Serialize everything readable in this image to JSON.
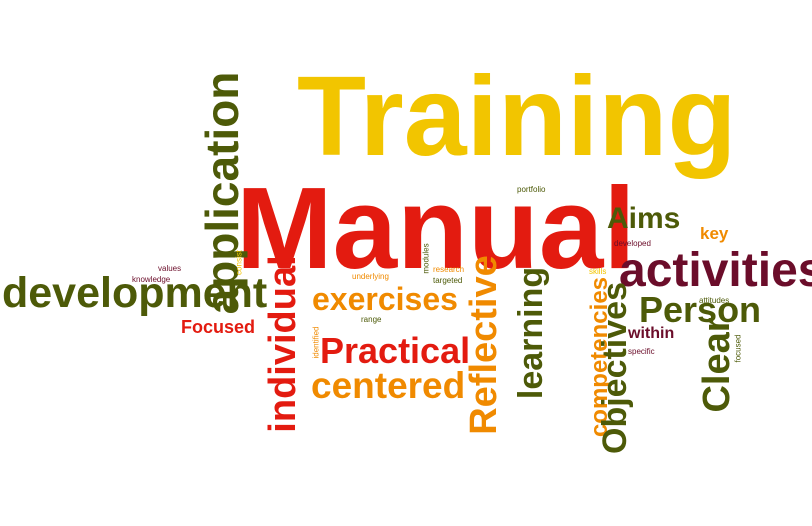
{
  "palette": {
    "yellow": "#f2c500",
    "red": "#e31b10",
    "orange": "#f08a00",
    "olive": "#4d5a08",
    "maroon": "#6b0d2a"
  },
  "words": [
    {
      "text": "Training",
      "color": "yellow"
    },
    {
      "text": "Manual",
      "color": "red"
    },
    {
      "text": "development",
      "color": "olive"
    },
    {
      "text": "activities",
      "color": "maroon"
    },
    {
      "text": "application",
      "color": "olive"
    },
    {
      "text": "individual",
      "color": "red"
    },
    {
      "text": "Practical",
      "color": "red"
    },
    {
      "text": "centered",
      "color": "orange"
    },
    {
      "text": "exercises",
      "color": "orange"
    },
    {
      "text": "Reflective",
      "color": "orange"
    },
    {
      "text": "learning",
      "color": "olive"
    },
    {
      "text": "competencies",
      "color": "orange"
    },
    {
      "text": "Objectives",
      "color": "olive"
    },
    {
      "text": "Person",
      "color": "olive"
    },
    {
      "text": "Clear",
      "color": "olive"
    },
    {
      "text": "Aims",
      "color": "olive"
    },
    {
      "text": "key",
      "color": "orange"
    },
    {
      "text": "within",
      "color": "maroon"
    },
    {
      "text": "Focused",
      "color": "red"
    },
    {
      "text": "portfolio",
      "color": "olive"
    },
    {
      "text": "developed",
      "color": "maroon"
    },
    {
      "text": "underlying",
      "color": "orange"
    },
    {
      "text": "research",
      "color": "orange"
    },
    {
      "text": "targeted",
      "color": "olive"
    },
    {
      "text": "values",
      "color": "maroon"
    },
    {
      "text": "knowledge",
      "color": "maroon"
    },
    {
      "text": "range",
      "color": "olive"
    },
    {
      "text": "attitudes",
      "color": "olive"
    },
    {
      "text": "specific",
      "color": "maroon"
    },
    {
      "text": "consist",
      "color": "yellow"
    },
    {
      "text": "identified",
      "color": "orange"
    },
    {
      "text": "modules",
      "color": "olive"
    },
    {
      "text": "skills",
      "color": "yellow"
    },
    {
      "text": "focused",
      "color": "olive"
    }
  ]
}
